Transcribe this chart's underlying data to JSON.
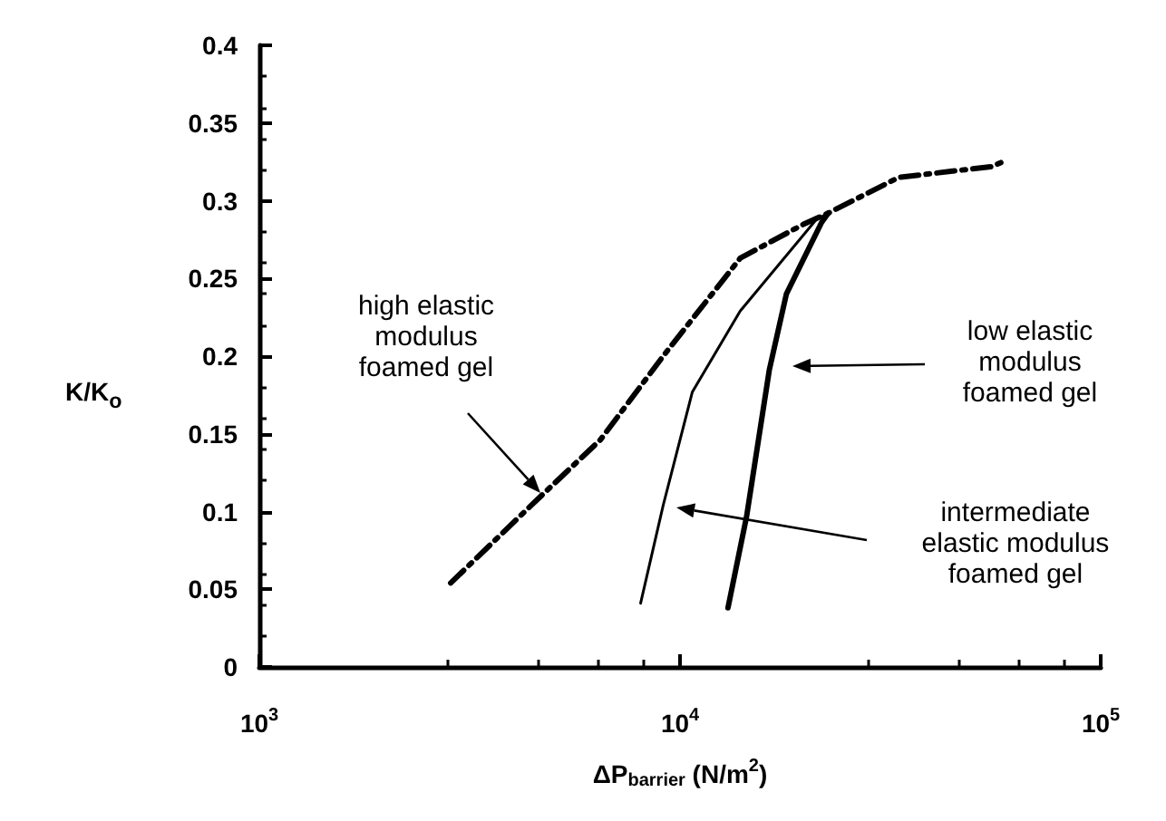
{
  "chart_data": {
    "type": "line",
    "xlabel": "ΔP$_{barrier}$ (N/m$^{2}$)",
    "ylabel": "K/K$_{o}$",
    "log": "x",
    "xlim": [
      1000,
      100000
    ],
    "xticks": [
      {
        "value": 1000,
        "label": "10$^{3}$"
      },
      {
        "value": 10000,
        "label": "10$^{4}$"
      },
      {
        "value": 100000,
        "label": "10$^{5}$"
      }
    ],
    "ylim": [
      0,
      0.4
    ],
    "yticks": [
      0,
      0.05,
      0.1,
      0.15,
      0.2,
      0.25,
      0.3,
      0.35,
      0.4
    ],
    "marker": "none",
    "series": [
      {
        "color": "#000000",
        "line_style": "dashed",
        "x": [
          2850,
          4430,
          6460,
          9120,
          13900,
          19700,
          22500,
          33100,
          55100,
          59600
        ],
        "values": [
          0.054,
          0.104,
          0.146,
          0.2,
          0.263,
          0.285,
          0.292,
          0.315,
          0.322,
          0.326
        ]
      },
      {
        "color": "#000000",
        "line_style": "solid",
        "x": [
          8060,
          9120,
          10700,
          13900,
          21100,
          22500
        ],
        "values": [
          0.041,
          0.104,
          0.177,
          0.229,
          0.288,
          0.292
        ]
      },
      {
        "color": "#000000",
        "line_style": "solid",
        "x": [
          13000,
          14400,
          16300,
          17900,
          21700,
          22500
        ],
        "values": [
          0.038,
          0.097,
          0.191,
          0.24,
          0.286,
          0.292
        ]
      }
    ],
    "annotations": [
      "high elastic\nmodulus\nfoamed gel",
      "intermediate\nelastic modulus\nfoamed gel",
      "low elastic\nmodulus\nfoamed gel"
    ]
  }
}
